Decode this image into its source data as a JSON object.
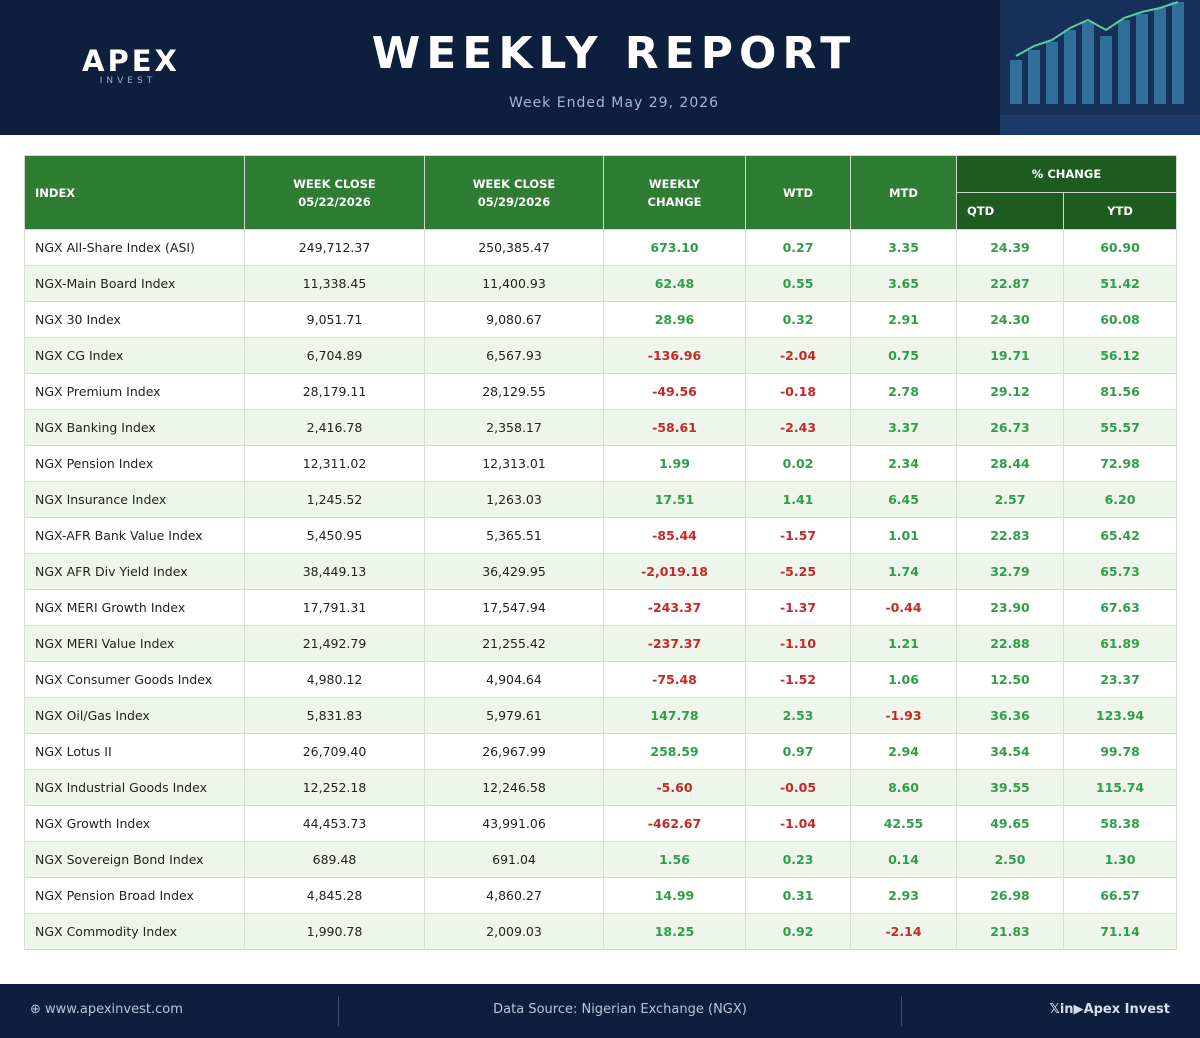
{
  "header": {
    "logo": "APEX",
    "logo_sub": "INVEST",
    "title": "WEEKLY REPORT",
    "subtitle": "Week Ended May 29, 2026"
  },
  "table": {
    "columns": [
      [
        "INDEX"
      ],
      [
        "WEEK CLOSE",
        "05/22/2026"
      ],
      [
        "WEEK CLOSE",
        "05/29/2026"
      ],
      [
        "WEEKLY",
        "CHANGE"
      ],
      [
        "WTD"
      ],
      [
        "MTD"
      ]
    ],
    "group": "% CHANGE",
    "group_columns": [
      "QTD",
      "YTD"
    ],
    "rows": [
      [
        "NGX All-Share Index (ASI)",
        "249,712.37",
        "250,385.47",
        "673.10",
        "0.27",
        "3.35",
        "24.39",
        "60.90"
      ],
      [
        "NGX-Main Board Index",
        "11,338.45",
        "11,400.93",
        "62.48",
        "0.55",
        "3.65",
        "22.87",
        "51.42"
      ],
      [
        "NGX 30 Index",
        "9,051.71",
        "9,080.67",
        "28.96",
        "0.32",
        "2.91",
        "24.30",
        "60.08"
      ],
      [
        "NGX CG Index",
        "6,704.89",
        "6,567.93",
        "-136.96",
        "-2.04",
        "0.75",
        "19.71",
        "56.12"
      ],
      [
        "NGX Premium Index",
        "28,179.11",
        "28,129.55",
        "-49.56",
        "-0.18",
        "2.78",
        "29.12",
        "81.56"
      ],
      [
        "NGX Banking Index",
        "2,416.78",
        "2,358.17",
        "-58.61",
        "-2.43",
        "3.37",
        "26.73",
        "55.57"
      ],
      [
        "NGX Pension Index",
        "12,311.02",
        "12,313.01",
        "1.99",
        "0.02",
        "2.34",
        "28.44",
        "72.98"
      ],
      [
        "NGX Insurance Index",
        "1,245.52",
        "1,263.03",
        "17.51",
        "1.41",
        "6.45",
        "2.57",
        "6.20"
      ],
      [
        "NGX-AFR Bank Value Index",
        "5,450.95",
        "5,365.51",
        "-85.44",
        "-1.57",
        "1.01",
        "22.83",
        "65.42"
      ],
      [
        "NGX AFR Div Yield Index",
        "38,449.13",
        "36,429.95",
        "-2,019.18",
        "-5.25",
        "1.74",
        "32.79",
        "65.73"
      ],
      [
        "NGX MERI Growth Index",
        "17,791.31",
        "17,547.94",
        "-243.37",
        "-1.37",
        "-0.44",
        "23.90",
        "67.63"
      ],
      [
        "NGX MERI Value Index",
        "21,492.79",
        "21,255.42",
        "-237.37",
        "-1.10",
        "1.21",
        "22.88",
        "61.89"
      ],
      [
        "NGX Consumer Goods Index",
        "4,980.12",
        "4,904.64",
        "-75.48",
        "-1.52",
        "1.06",
        "12.50",
        "23.37"
      ],
      [
        "NGX Oil/Gas Index",
        "5,831.83",
        "5,979.61",
        "147.78",
        "2.53",
        "-1.93",
        "36.36",
        "123.94"
      ],
      [
        "NGX Lotus II",
        "26,709.40",
        "26,967.99",
        "258.59",
        "0.97",
        "2.94",
        "34.54",
        "99.78"
      ],
      [
        "NGX Industrial Goods Index",
        "12,252.18",
        "12,246.58",
        "-5.60",
        "-0.05",
        "8.60",
        "39.55",
        "115.74"
      ],
      [
        "NGX Growth Index",
        "44,453.73",
        "43,991.06",
        "-462.67",
        "-1.04",
        "42.55",
        "49.65",
        "58.38"
      ],
      [
        "NGX Sovereign Bond Index",
        "689.48",
        "691.04",
        "1.56",
        "0.23",
        "0.14",
        "2.50",
        "1.30"
      ],
      [
        "NGX Pension Broad Index",
        "4,845.28",
        "4,860.27",
        "14.99",
        "0.31",
        "2.93",
        "26.98",
        "66.57"
      ],
      [
        "NGX Commodity Index",
        "1,990.78",
        "2,009.03",
        "18.25",
        "0.92",
        "-2.14",
        "21.83",
        "71.14"
      ]
    ]
  },
  "footer": {
    "website": "www.apexinvest.com",
    "source": "Data Source: Nigerian Exchange (NGX)",
    "brand": "Apex Invest"
  }
}
